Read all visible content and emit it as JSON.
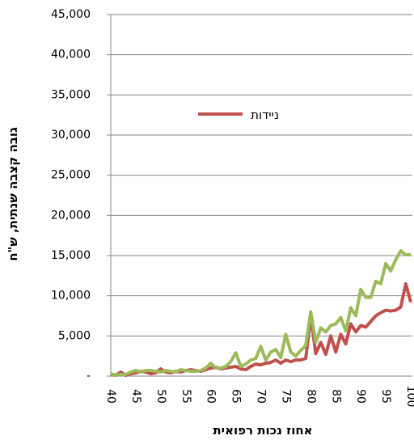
{
  "chart_data": {
    "type": "line",
    "x_label": "אחוז נכות רפואית",
    "y_label": "גובה קצבה שנתית, ש\"ח",
    "x": [
      40,
      41,
      42,
      43,
      44,
      45,
      46,
      47,
      48,
      49,
      50,
      51,
      52,
      53,
      54,
      55,
      56,
      57,
      58,
      59,
      60,
      61,
      62,
      63,
      64,
      65,
      66,
      67,
      68,
      69,
      70,
      71,
      72,
      73,
      74,
      75,
      76,
      77,
      78,
      79,
      80,
      81,
      82,
      83,
      84,
      85,
      86,
      87,
      88,
      89,
      90,
      91,
      92,
      93,
      94,
      95,
      96,
      97,
      98,
      99,
      100
    ],
    "xlim": [
      40,
      100
    ],
    "xticks": [
      40,
      45,
      50,
      55,
      60,
      65,
      70,
      75,
      80,
      85,
      90,
      95,
      100
    ],
    "ylim": [
      0,
      45000
    ],
    "yticks": [
      {
        "value": 0,
        "label": "-"
      },
      {
        "value": 5000,
        "label": "5,000"
      },
      {
        "value": 10000,
        "label": "10,000"
      },
      {
        "value": 15000,
        "label": "15,000"
      },
      {
        "value": 20000,
        "label": "20,000"
      },
      {
        "value": 25000,
        "label": "25,000"
      },
      {
        "value": 30000,
        "label": "30,000"
      },
      {
        "value": 35000,
        "label": "35,000"
      },
      {
        "value": 40000,
        "label": "40,000"
      },
      {
        "value": 45000,
        "label": "45,000"
      }
    ],
    "grid": true,
    "series": [
      {
        "name": "ניידות",
        "color": "#c0504d",
        "values": [
          200,
          100,
          500,
          100,
          300,
          400,
          600,
          500,
          300,
          400,
          900,
          500,
          400,
          600,
          500,
          700,
          800,
          700,
          600,
          800,
          1000,
          1100,
          900,
          1000,
          1100,
          1200,
          900,
          800,
          1200,
          1500,
          1400,
          1600,
          1700,
          2000,
          1600,
          2000,
          1800,
          2000,
          2000,
          2200,
          7500,
          2800,
          4200,
          2700,
          5000,
          3000,
          5200,
          4000,
          6500,
          5500,
          6300,
          6100,
          6800,
          7500,
          7900,
          8200,
          8100,
          8200,
          8600,
          11500,
          9200
        ]
      },
      {
        "color": "#9bbb59",
        "values": [
          300,
          100,
          200,
          200,
          500,
          700,
          500,
          700,
          700,
          600,
          500,
          700,
          600,
          500,
          800,
          700,
          600,
          600,
          700,
          1000,
          1600,
          1000,
          1000,
          1200,
          1800,
          2900,
          1200,
          1500,
          2000,
          2200,
          3700,
          2000,
          3000,
          3300,
          2300,
          5200,
          3000,
          2500,
          3200,
          3800,
          8000,
          4200,
          6000,
          5500,
          6300,
          6500,
          7300,
          5600,
          8500,
          7500,
          10800,
          9800,
          9800,
          11800,
          11500,
          14000,
          13100,
          14500,
          15600,
          15100,
          15100
        ]
      }
    ]
  }
}
